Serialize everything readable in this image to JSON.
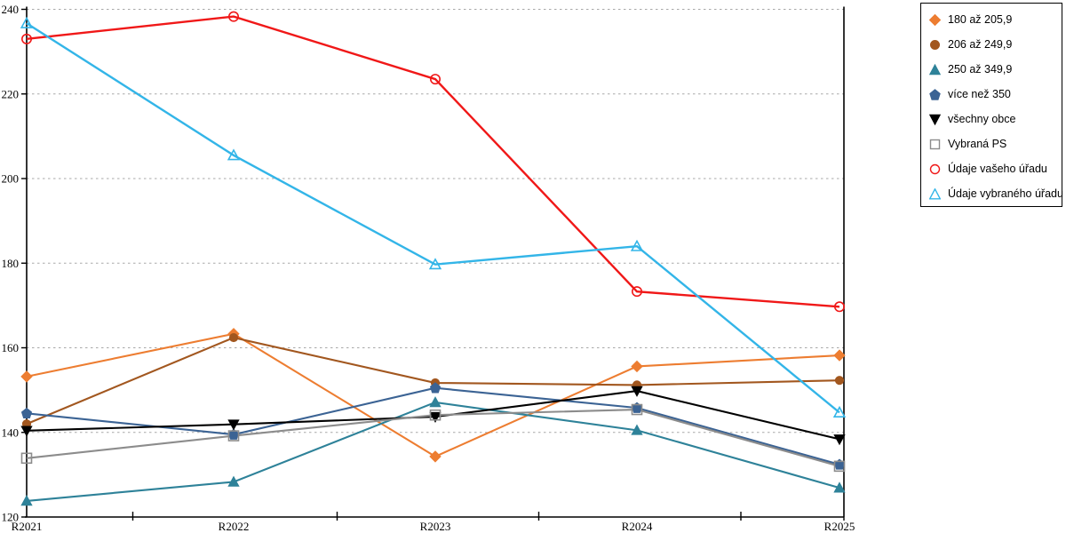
{
  "chart_data": {
    "type": "line",
    "title": "",
    "xlabel": "",
    "ylabel": "",
    "x_categories": [
      "R2021",
      "R2022",
      "R2023",
      "R2024",
      "R2025"
    ],
    "y_ticks": [
      "120",
      "140",
      "160",
      "180",
      "200",
      "220",
      "240"
    ],
    "ylim": [
      120,
      240
    ],
    "grid": "horizontal-dashed",
    "grid_color": "#a8a8a8",
    "axis_color": "#000000",
    "legend_position": "outside-top-right",
    "series": [
      {
        "name": "180 až 205,9",
        "marker": "diamond",
        "open": false,
        "color": "#ED7D31",
        "values": [
          153.2,
          163.3,
          134.3,
          155.6,
          158.2
        ]
      },
      {
        "name": "206 až 249,9",
        "marker": "circle",
        "open": false,
        "color": "#A2571F",
        "values": [
          142.0,
          162.4,
          151.7,
          151.2,
          152.3
        ]
      },
      {
        "name": "250 až 349,9",
        "marker": "triangle-up",
        "open": false,
        "color": "#2E8299",
        "values": [
          123.8,
          128.3,
          147.1,
          140.5,
          126.9
        ]
      },
      {
        "name": "více než 350",
        "marker": "pentagon",
        "open": false,
        "color": "#3B6394",
        "values": [
          144.5,
          139.5,
          150.5,
          145.8,
          132.4
        ]
      },
      {
        "name": "všechny obce",
        "marker": "triangle-down",
        "open": false,
        "color": "#000000",
        "values": [
          140.4,
          141.9,
          143.7,
          149.8,
          138.4
        ]
      },
      {
        "name": "Vybraná PS",
        "marker": "square",
        "open": true,
        "color": "#8C8C8C",
        "values": [
          133.9,
          139.2,
          144.1,
          145.4,
          132.0
        ]
      },
      {
        "name": "Údaje vašeho úřadu",
        "marker": "circle",
        "open": true,
        "color": "#F01818",
        "values": [
          233.0,
          238.3,
          223.5,
          173.3,
          169.7
        ]
      },
      {
        "name": "Údaje vybraného úřadu",
        "marker": "triangle-up",
        "open": true,
        "color": "#33B5E8",
        "values": [
          236.7,
          205.5,
          179.7,
          184.0,
          144.7
        ]
      }
    ]
  }
}
